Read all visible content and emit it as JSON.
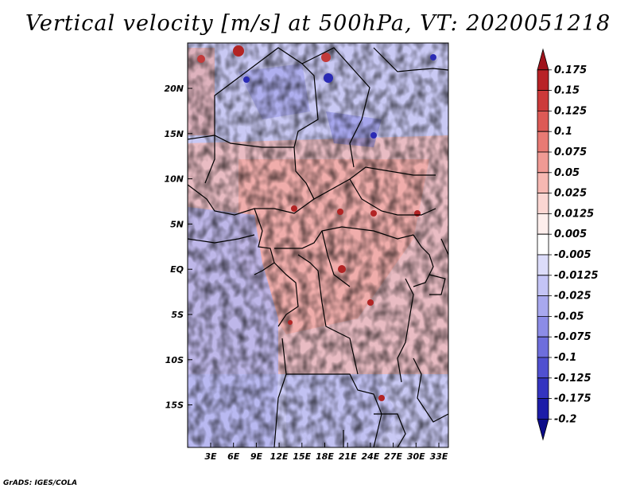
{
  "title": "Vertical velocity [m/s] at 500hPa, VT: 2020051218",
  "credit": "GrADS: IGES/COLA",
  "map": {
    "lon_labels": [
      "3E",
      "6E",
      "9E",
      "12E",
      "15E",
      "18E",
      "21E",
      "24E",
      "27E",
      "30E",
      "33E"
    ],
    "lat_labels": [
      "20N",
      "15N",
      "10N",
      "5N",
      "EQ",
      "5S",
      "10S",
      "15S"
    ]
  },
  "colorbar": {
    "labels": [
      "0.175",
      "0.15",
      "0.125",
      "0.1",
      "0.075",
      "0.05",
      "0.025",
      "0.0125",
      "0.005",
      "-0.005",
      "-0.0125",
      "-0.025",
      "-0.05",
      "-0.075",
      "-0.1",
      "-0.125",
      "-0.175",
      "-0.2"
    ],
    "colors": [
      "#a0141c",
      "#b82226",
      "#cc3a3a",
      "#dd5a56",
      "#e87a74",
      "#f09a94",
      "#f6b8b2",
      "#fbd6d2",
      "#fdeeec",
      "#ffffff",
      "#dcdcfa",
      "#c4c4f6",
      "#a8a8ee",
      "#8c8ce6",
      "#6e6edc",
      "#5050d0",
      "#3434c0",
      "#1c1ca8",
      "#0c0c88"
    ]
  }
}
